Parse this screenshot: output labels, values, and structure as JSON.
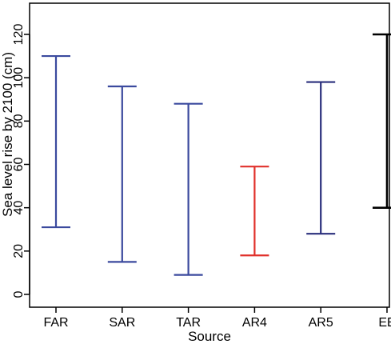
{
  "chart_data": {
    "type": "range-bar",
    "title": "",
    "xlabel": "Source",
    "ylabel": "Sea level rise by 2100 (cm)",
    "ylim": [
      -3,
      130
    ],
    "yticks": [
      0,
      20,
      40,
      60,
      80,
      100,
      120
    ],
    "categories": [
      "FAR",
      "SAR",
      "TAR",
      "AR4",
      "AR5",
      "EE"
    ],
    "ranges": [
      {
        "category": "FAR",
        "low": 31,
        "high": 110,
        "color": "#3b4a9e"
      },
      {
        "category": "SAR",
        "low": 15,
        "high": 96,
        "color": "#3b4a9e"
      },
      {
        "category": "TAR",
        "low": 9,
        "high": 88,
        "color": "#3b4a9e"
      },
      {
        "category": "AR4",
        "low": 18,
        "high": 59,
        "color": "#e0312b"
      },
      {
        "category": "AR5",
        "low": 28,
        "high": 98,
        "color": "#2a2f7c"
      },
      {
        "category": "EE",
        "low": 40,
        "high": 120,
        "color": "#000000"
      }
    ],
    "grid": false,
    "legend": "none"
  }
}
